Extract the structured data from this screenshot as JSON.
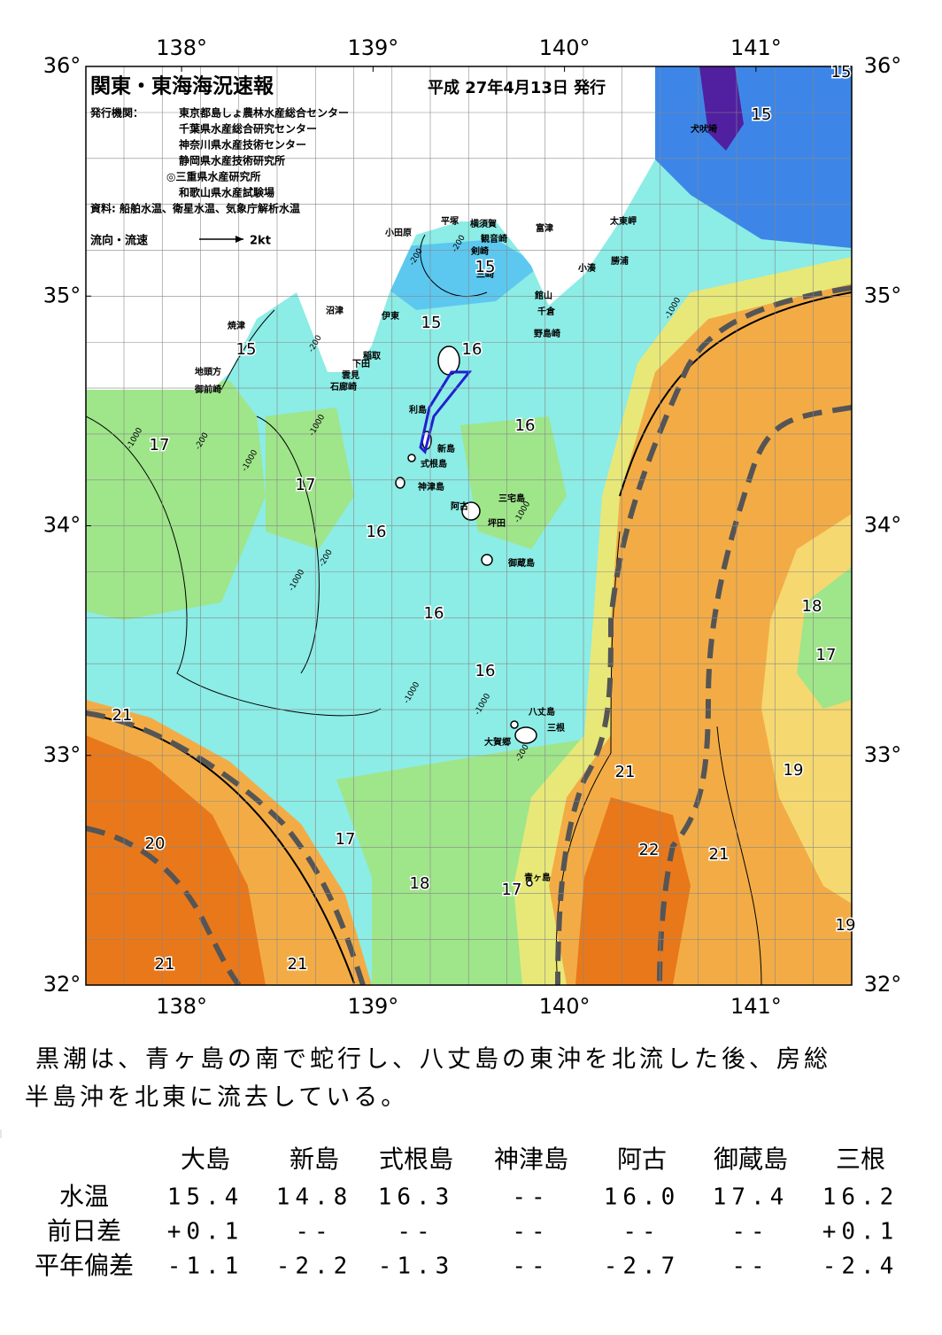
{
  "header": {
    "title": "関東・東海海況速報",
    "date": "平成 27年4月13日 発行",
    "issuer_label": "発行機関：",
    "issuers": [
      "東京都島しょ農林水産総合センター",
      "千葉県水産総合研究センター",
      "神奈川県水産技術センター",
      "静岡県水産技術研究所",
      "◎三重県水産研究所",
      "和歌山県水産試験場"
    ],
    "source": "資料: 船舶水温、衛星水温、気象庁解析水温",
    "legend_label": "流向・流速",
    "legend_speed": "2kt"
  },
  "map": {
    "xlim": [
      137.5,
      141.5
    ],
    "ylim": [
      32,
      36
    ],
    "xticks": [
      {
        "value": 138,
        "label": "138°"
      },
      {
        "value": 139,
        "label": "139°"
      },
      {
        "value": 140,
        "label": "140°"
      },
      {
        "value": 141,
        "label": "141°"
      }
    ],
    "yticks": [
      {
        "value": 32,
        "label": "32°"
      },
      {
        "value": 33,
        "label": "33°"
      },
      {
        "value": 34,
        "label": "34°"
      },
      {
        "value": 35,
        "label": "35°"
      },
      {
        "value": 36,
        "label": "36°"
      }
    ],
    "places": [
      "犬吠埼",
      "太東岬",
      "富津",
      "勝浦",
      "小湊",
      "館山",
      "千倉",
      "野島崎",
      "横須賀",
      "観音崎",
      "平塚",
      "剣崎",
      "三崎",
      "小田原",
      "沼津",
      "伊東",
      "焼津",
      "稲取",
      "下田",
      "雲見",
      "石廊崎",
      "地頭方",
      "御前崎",
      "利島",
      "新島",
      "式根島",
      "神津島",
      "三宅島",
      "阿古",
      "坪田",
      "御蔵島",
      "八丈島",
      "三根",
      "大賀郷",
      "青ヶ島"
    ],
    "temperature_labels": [
      15,
      15,
      15,
      15,
      15,
      16,
      16,
      16,
      16,
      16,
      17,
      17,
      17,
      17,
      17,
      18,
      18,
      21,
      21,
      21,
      21,
      21,
      20,
      22,
      19,
      19
    ],
    "depth_labels": [
      -200,
      -200,
      -1000,
      -200,
      -1000,
      -1000,
      -200,
      -1000,
      -1000,
      -1000,
      -1000,
      -200,
      -1000,
      -200
    ]
  },
  "summary": "黒潮は、青ヶ島の南で蛇行し、八丈島の東沖を北流した後、房総半島沖を北東に流去している。",
  "table": {
    "columns": [
      "大島",
      "新島",
      "式根島",
      "神津島",
      "阿古",
      "御蔵島",
      "三根"
    ],
    "rows": [
      {
        "label": "水温",
        "values": [
          "15.4",
          "14.8",
          "16.3",
          "--",
          "16.0",
          "17.4",
          "16.2"
        ]
      },
      {
        "label": "前日差",
        "values": [
          "+0.1",
          "--",
          "--",
          "--",
          "--",
          "--",
          "+0.1"
        ]
      },
      {
        "label": "平年偏差",
        "values": [
          "-1.1",
          "-2.2",
          "-1.3",
          "--",
          "-2.7",
          "--",
          "-2.4"
        ]
      }
    ]
  }
}
